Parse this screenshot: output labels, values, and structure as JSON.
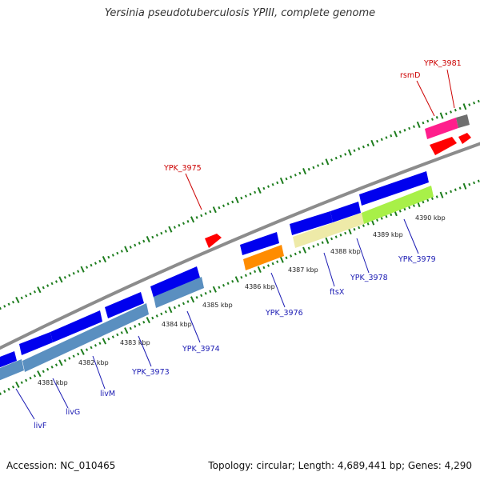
{
  "title": "Yersinia pseudotuberculosis YPIII, complete genome",
  "footer": {
    "accession": "Accession: NC_010465",
    "summary": "Topology: circular; Length: 4,689,441 bp; Genes: 4,290"
  },
  "colors": {
    "backbone": "#8c8c8c",
    "tick": "#1e7d1e",
    "label_forward": "#cc0000",
    "label_reverse": "#1a1ab3",
    "cds_forward": "#ff0000",
    "cds_reverse": "#0000ee",
    "gene_blue": "#5a8fc0",
    "gene_orange": "#ff8c00",
    "gene_cream": "#eeeaa8",
    "gene_lime": "#a8f048",
    "gene_magenta": "#ff2d96",
    "gene_gray": "#6f6f6f"
  },
  "ticks": [
    {
      "label": "4381 kbp"
    },
    {
      "label": "4382 kbp"
    },
    {
      "label": "4383 kbp"
    },
    {
      "label": "4384 kbp"
    },
    {
      "label": "4385 kbp"
    },
    {
      "label": "4386 kbp"
    },
    {
      "label": "4387 kbp"
    },
    {
      "label": "4388 kbp"
    },
    {
      "label": "4389 kbp"
    },
    {
      "label": "4390 kbp"
    }
  ],
  "gene_labels": [
    {
      "name": "YPK_3981",
      "strand": "forward"
    },
    {
      "name": "rsmD",
      "strand": "forward"
    },
    {
      "name": "YPK_3975",
      "strand": "forward"
    },
    {
      "name": "YPK_3979",
      "strand": "reverse"
    },
    {
      "name": "YPK_3978",
      "strand": "reverse"
    },
    {
      "name": "ftsX",
      "strand": "reverse"
    },
    {
      "name": "YPK_3976",
      "strand": "reverse"
    },
    {
      "name": "YPK_3974",
      "strand": "reverse"
    },
    {
      "name": "YPK_3973",
      "strand": "reverse"
    },
    {
      "name": "livM",
      "strand": "reverse"
    },
    {
      "name": "livG",
      "strand": "reverse"
    },
    {
      "name": "livF",
      "strand": "reverse"
    }
  ]
}
